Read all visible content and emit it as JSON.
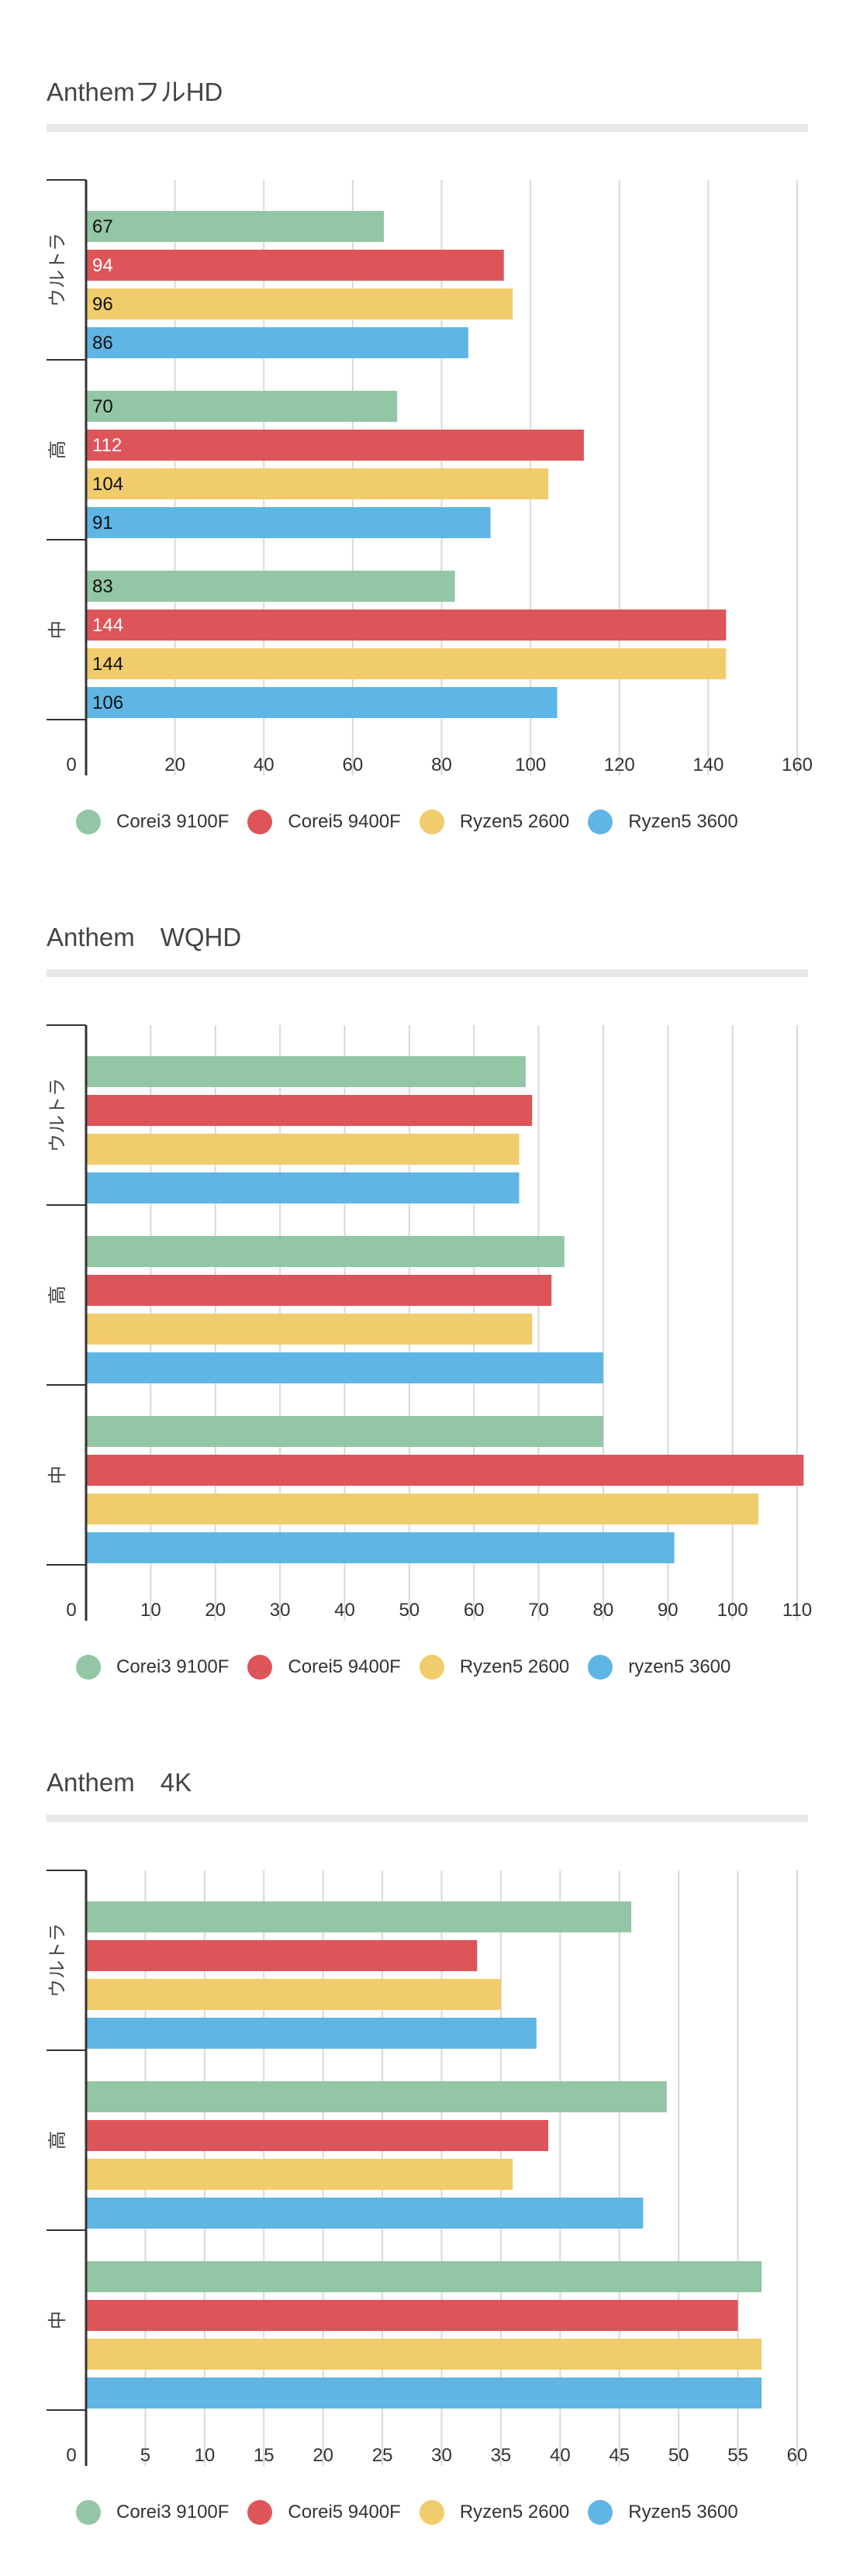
{
  "colors": {
    "Corei3 9100F": "#93c6a4",
    "Corei5 9400F": "#de5559",
    "Ryzen5 2600": "#f1cc6c",
    "Ryzen5 3600": "#5fb5e4"
  },
  "chart_data": [
    {
      "type": "bar",
      "orientation": "horizontal",
      "title": "AnthemフルHD",
      "categories": [
        "ウルトラ",
        "高",
        "中"
      ],
      "series": [
        {
          "name": "Corei3 9100F",
          "values": [
            67,
            70,
            83
          ]
        },
        {
          "name": "Corei5 9400F",
          "values": [
            94,
            112,
            144
          ]
        },
        {
          "name": "Ryzen5 2600",
          "values": [
            96,
            104,
            144
          ]
        },
        {
          "name": "Ryzen5 3600",
          "values": [
            86,
            91,
            106
          ]
        }
      ],
      "data_labels": true,
      "xlim": [
        0,
        160
      ],
      "xticks": [
        0,
        20,
        40,
        60,
        80,
        100,
        120,
        140,
        160
      ],
      "grid": true,
      "legend": "bottom",
      "legend_labels": [
        "Corei3 9100F",
        "Corei5 9400F",
        "Ryzen5 2600",
        "Ryzen5 3600"
      ]
    },
    {
      "type": "bar",
      "orientation": "horizontal",
      "title": "Anthem　WQHD",
      "categories": [
        "ウルトラ",
        "高",
        "中"
      ],
      "series": [
        {
          "name": "Corei3 9100F",
          "values": [
            68,
            74,
            80
          ]
        },
        {
          "name": "Corei5 9400F",
          "values": [
            69,
            72,
            111
          ]
        },
        {
          "name": "Ryzen5 2600",
          "values": [
            67,
            69,
            104
          ]
        },
        {
          "name": "Ryzen5 3600",
          "values": [
            67,
            80,
            91
          ]
        }
      ],
      "data_labels": false,
      "xlim": [
        0,
        110
      ],
      "xticks": [
        0,
        10,
        20,
        30,
        40,
        50,
        60,
        70,
        80,
        90,
        100,
        110
      ],
      "grid": true,
      "legend": "bottom",
      "legend_labels": [
        "Corei3 9100F",
        "Corei5 9400F",
        "Ryzen5 2600",
        "ryzen5 3600"
      ]
    },
    {
      "type": "bar",
      "orientation": "horizontal",
      "title": "Anthem　4K",
      "categories": [
        "ウルトラ",
        "高",
        "中"
      ],
      "series": [
        {
          "name": "Corei3 9100F",
          "values": [
            46,
            49,
            57
          ]
        },
        {
          "name": "Corei5 9400F",
          "values": [
            33,
            39,
            55
          ]
        },
        {
          "name": "Ryzen5 2600",
          "values": [
            35,
            36,
            57
          ]
        },
        {
          "name": "Ryzen5 3600",
          "values": [
            38,
            47,
            57
          ]
        }
      ],
      "data_labels": false,
      "xlim": [
        0,
        60
      ],
      "xticks": [
        0,
        5,
        10,
        15,
        20,
        25,
        30,
        35,
        40,
        45,
        50,
        55,
        60
      ],
      "grid": true,
      "legend": "bottom",
      "legend_labels": [
        "Corei3 9100F",
        "Corei5 9400F",
        "Ryzen5 2600",
        "Ryzen5 3600"
      ]
    }
  ]
}
